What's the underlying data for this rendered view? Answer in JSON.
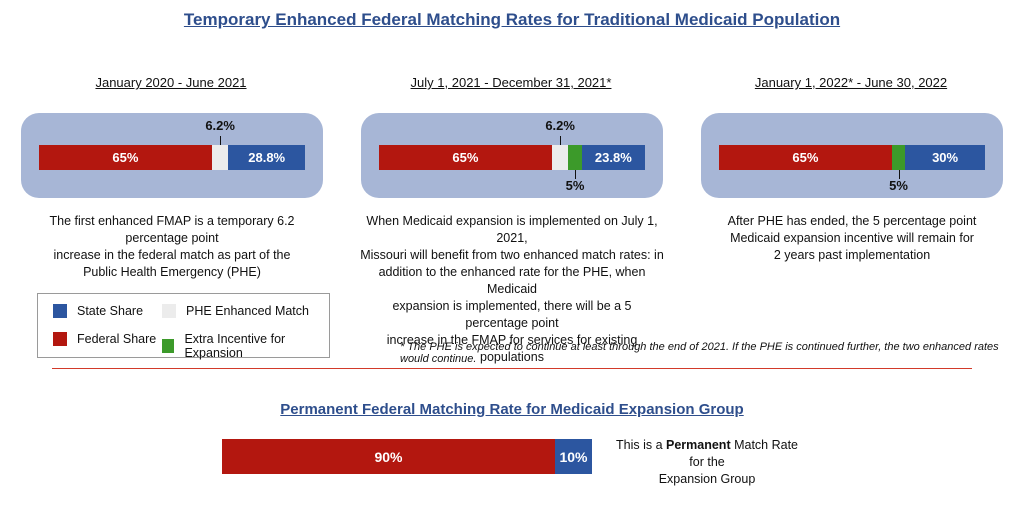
{
  "title": "Temporary Enhanced Federal Matching Rates for Traditional Medicaid Population",
  "colors": {
    "federal_share": "#b3170f",
    "state_share": "#2c56a0",
    "phe_enhanced": "#ececec",
    "expansion_incentive": "#3c9a2a",
    "panel_background": "#a7b6d6",
    "title": "#2e4e8c"
  },
  "panels": [
    {
      "period": "January 2020 - June 2021",
      "description": [
        "The first enhanced FMAP is a temporary 6.2 percentage point",
        "increase in the federal match as part of the",
        "Public Health Emergency (PHE)"
      ]
    },
    {
      "period": "July 1, 2021  - December 31, 2021*",
      "description": [
        "When Medicaid expansion is implemented on July 1, 2021,",
        "Missouri will benefit from two enhanced match rates: in",
        "addition to the enhanced rate for the PHE, when Medicaid",
        "expansion is implemented, there will be a 5 percentage point",
        "increase in the FMAP for services for existing populations"
      ]
    },
    {
      "period": "January 1, 2022* - June 30, 2022",
      "description": [
        "After PHE has ended, the 5 percentage point",
        "Medicaid expansion incentive will remain for",
        "2 years past implementation"
      ]
    }
  ],
  "legend": {
    "state_share": "State Share",
    "phe_enhanced": "PHE Enhanced Match",
    "federal_share": "Federal Share",
    "expansion_incentive": "Extra Incentive for Expansion"
  },
  "footnote": "* The PHE is expected to continue at least through the end of 2021. If the PHE is continued further, the two enhanced rates would continue.",
  "permanent": {
    "title": "Permanent Federal Matching Rate for Medicaid Expansion Group",
    "note_prefix": "This is a ",
    "note_bold": "Permanent",
    "note_suffix": " Match Rate for the",
    "note_line2": "Expansion Group"
  },
  "chart_data": [
    {
      "type": "bar",
      "title": "January 2020 - June 2021",
      "segments": [
        {
          "series": "Federal Share",
          "value": 65,
          "label": "65%"
        },
        {
          "series": "PHE Enhanced Match",
          "value": 6.2,
          "label": "6.2%"
        },
        {
          "series": "State Share",
          "value": 28.8,
          "label": "28.8%"
        }
      ]
    },
    {
      "type": "bar",
      "title": "July 1, 2021  - December 31, 2021*",
      "segments": [
        {
          "series": "Federal Share",
          "value": 65,
          "label": "65%"
        },
        {
          "series": "PHE Enhanced Match",
          "value": 6.2,
          "label": "6.2%"
        },
        {
          "series": "Extra Incentive for Expansion",
          "value": 5,
          "label": "5%"
        },
        {
          "series": "State Share",
          "value": 23.8,
          "label": "23.8%"
        }
      ]
    },
    {
      "type": "bar",
      "title": "January 1, 2022* - June 30, 2022",
      "segments": [
        {
          "series": "Federal Share",
          "value": 65,
          "label": "65%"
        },
        {
          "series": "Extra Incentive for Expansion",
          "value": 5,
          "label": "5%"
        },
        {
          "series": "State Share",
          "value": 30,
          "label": "30%"
        }
      ]
    },
    {
      "type": "bar",
      "title": "Permanent Federal Matching Rate for Medicaid Expansion Group",
      "segments": [
        {
          "series": "Federal Share",
          "value": 90,
          "label": "90%"
        },
        {
          "series": "State Share",
          "value": 10,
          "label": "10%"
        }
      ]
    }
  ]
}
